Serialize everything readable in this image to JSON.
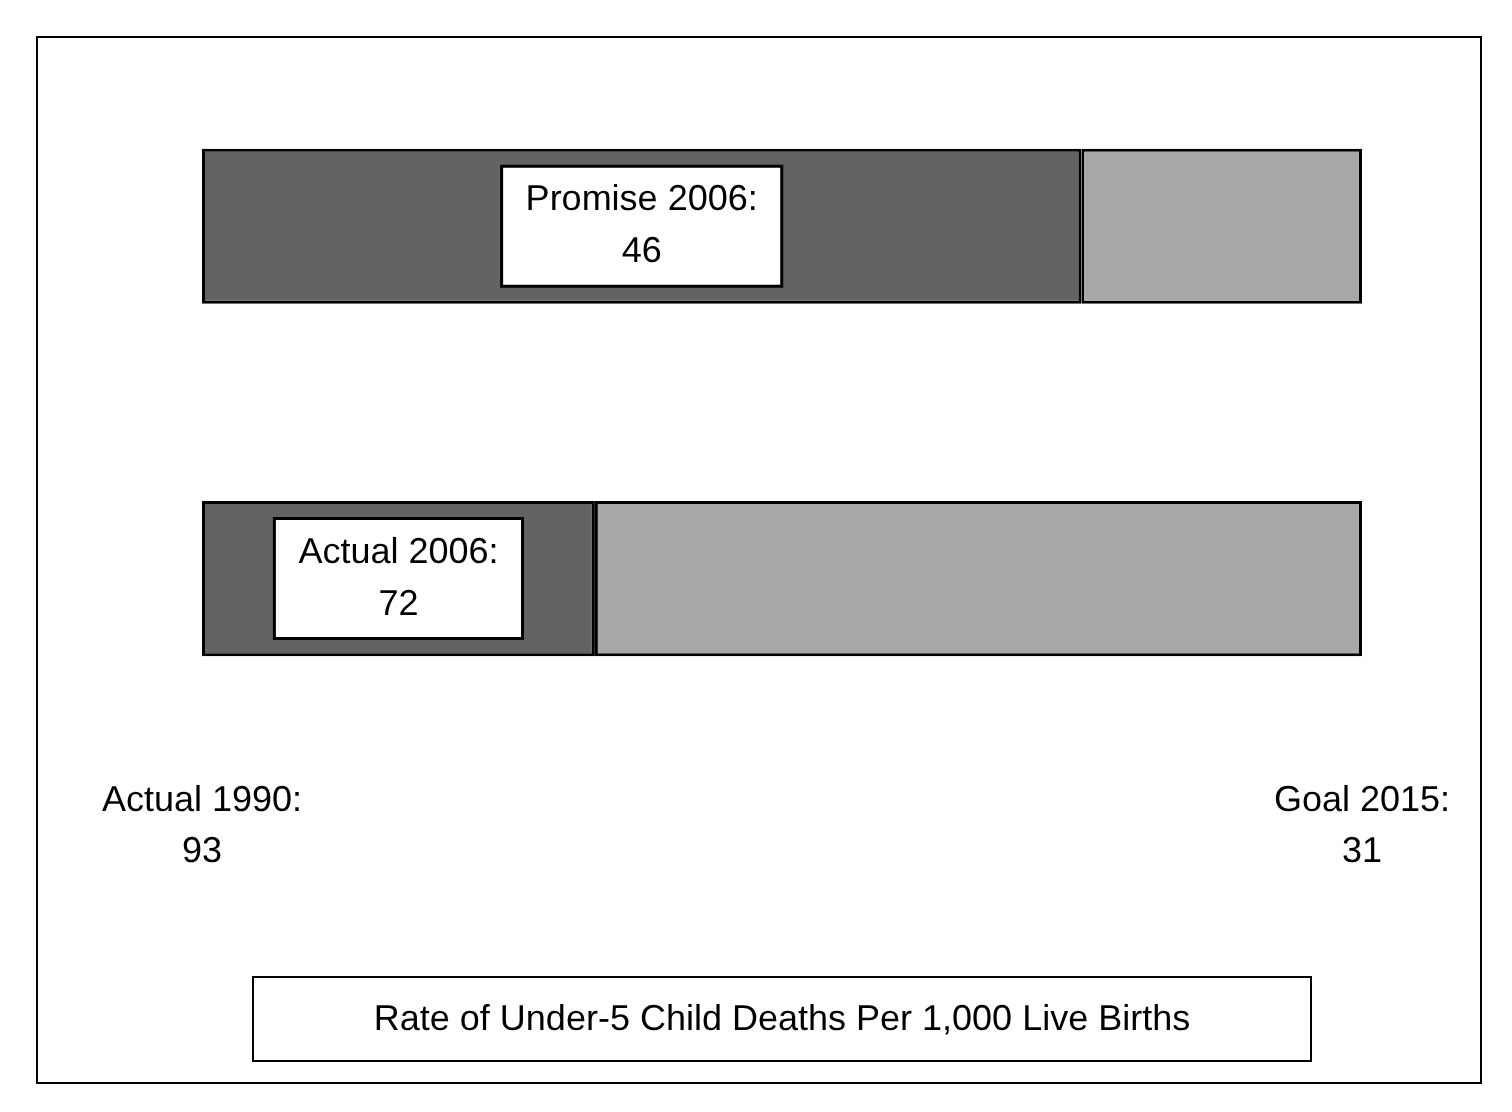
{
  "chart_data": {
    "type": "bar",
    "orientation": "horizontal",
    "stacked": true,
    "categories": [
      null,
      null
    ],
    "series": [
      {
        "color": "#636363",
        "base": [
          93,
          93
        ],
        "values": [
          -47,
          -21
        ],
        "value_labels": [
          "Promise 2006: 46",
          "Actual 2006: 72"
        ]
      },
      {
        "color": "#a8a8a8",
        "base": [
          46,
          72
        ],
        "values": [
          -15,
          -41
        ]
      }
    ],
    "xlim": [
      93,
      31
    ],
    "xticks": [
      93,
      31
    ],
    "annotations": [
      "Actual 1990:",
      "Goal 2015:"
    ],
    "xlabel": "Rate of Under-5 Child Deaths Per 1,000 Live Births",
    "grid": false,
    "legend": false
  }
}
